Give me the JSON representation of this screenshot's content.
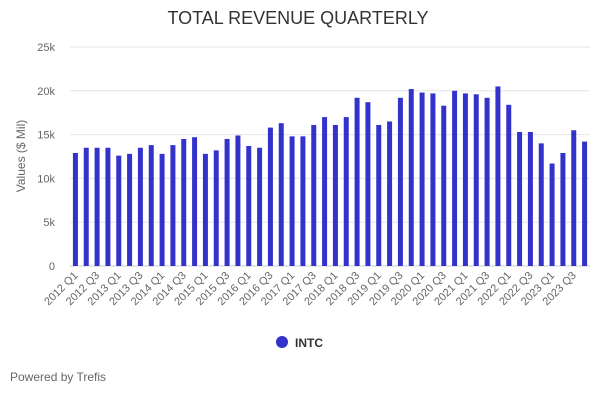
{
  "chart_data": {
    "type": "bar",
    "title": "TOTAL REVENUE QUARTERLY",
    "xlabel": "",
    "ylabel": "Values ($ Mil)",
    "ylim": [
      0,
      25000
    ],
    "yticks": [
      0,
      5000,
      10000,
      15000,
      20000,
      25000
    ],
    "ytick_labels": [
      "0",
      "5k",
      "10k",
      "15k",
      "20k",
      "25k"
    ],
    "grid": true,
    "legend_position": "bottom-center",
    "categories": [
      "2012 Q1",
      "2012 Q2",
      "2012 Q3",
      "2012 Q4",
      "2013 Q1",
      "2013 Q2",
      "2013 Q3",
      "2013 Q4",
      "2014 Q1",
      "2014 Q2",
      "2014 Q3",
      "2014 Q4",
      "2015 Q1",
      "2015 Q2",
      "2015 Q3",
      "2015 Q4",
      "2016 Q1",
      "2016 Q2",
      "2016 Q3",
      "2016 Q4",
      "2017 Q1",
      "2017 Q2",
      "2017 Q3",
      "2017 Q4",
      "2018 Q1",
      "2018 Q2",
      "2018 Q3",
      "2018 Q4",
      "2019 Q1",
      "2019 Q2",
      "2019 Q3",
      "2019 Q4",
      "2020 Q1",
      "2020 Q2",
      "2020 Q3",
      "2020 Q4",
      "2021 Q1",
      "2021 Q2",
      "2021 Q3",
      "2021 Q4",
      "2022 Q1",
      "2022 Q2",
      "2022 Q3",
      "2022 Q4",
      "2023 Q1",
      "2023 Q2",
      "2023 Q3",
      "2023 Q4"
    ],
    "label_every": 2,
    "series": [
      {
        "name": "INTC",
        "color": "#3333cc",
        "values": [
          12900,
          13500,
          13500,
          13500,
          12600,
          12800,
          13500,
          13800,
          12800,
          13800,
          14500,
          14700,
          12800,
          13200,
          14500,
          14900,
          13700,
          13500,
          15800,
          16300,
          14800,
          14800,
          16100,
          17000,
          16100,
          17000,
          19200,
          18700,
          16100,
          16500,
          19200,
          20200,
          19800,
          19700,
          18300,
          20000,
          19700,
          19600,
          19200,
          20500,
          18400,
          15300,
          15300,
          14000,
          11700,
          12900,
          15500,
          14200
        ]
      }
    ]
  },
  "footer": {
    "credits": "Powered by Trefis"
  }
}
